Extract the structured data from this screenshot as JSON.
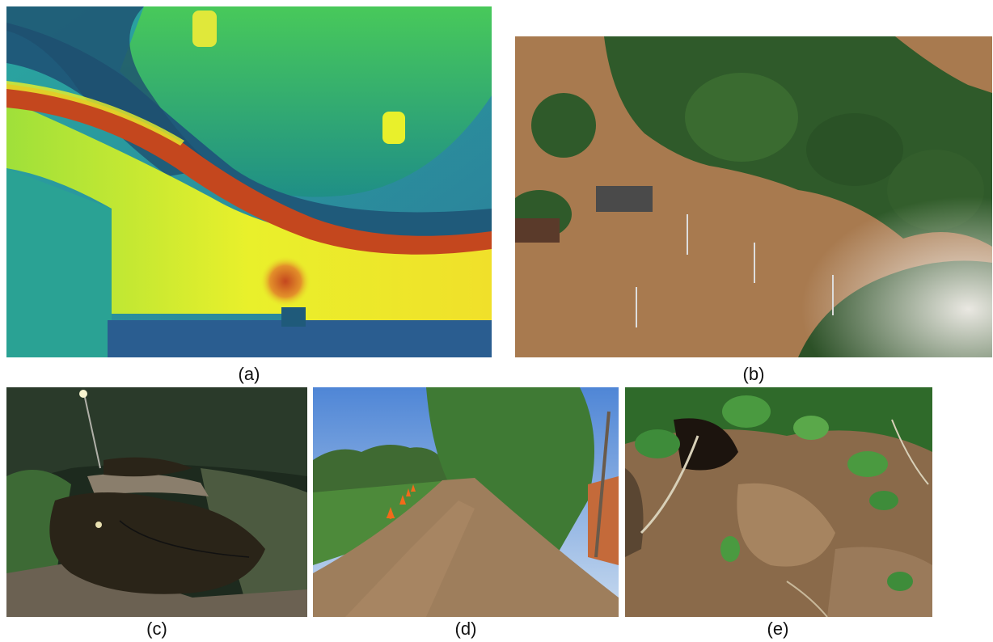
{
  "panels": [
    {
      "id": "a",
      "caption": "(a)"
    },
    {
      "id": "b",
      "caption": "(b)"
    },
    {
      "id": "c",
      "caption": "(c)"
    },
    {
      "id": "d",
      "caption": "(d)"
    },
    {
      "id": "e",
      "caption": "(e)"
    }
  ],
  "colors": {
    "thermal_dark": "#1f5a7a",
    "thermal_green": "#3cc24a",
    "thermal_yellow": "#e8f02a",
    "thermal_red": "#c4471e",
    "floodwater": "#a87a4f",
    "foliage": "#2f5a2a",
    "soil": "#8a6a4a"
  }
}
